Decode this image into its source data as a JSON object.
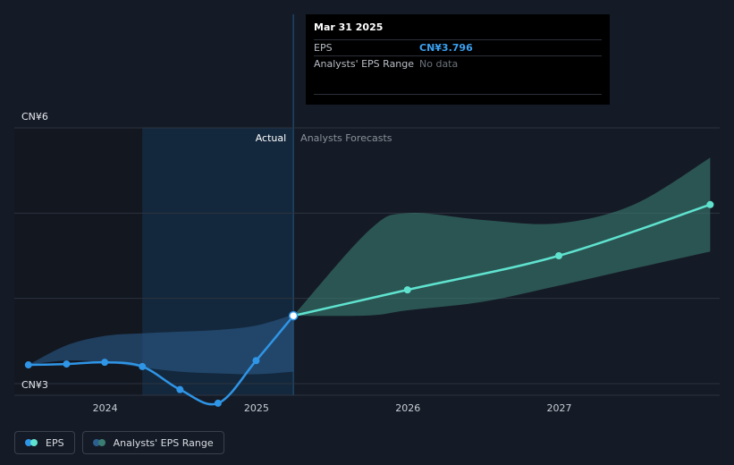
{
  "chart_data": {
    "type": "line",
    "y_axis": {
      "top_label": "CN¥6",
      "bottom_label": "CN¥3",
      "ylim": [
        3,
        6
      ],
      "grid": true
    },
    "x_axis": {
      "tick_labels": [
        "2024",
        "2025",
        "2026",
        "2027"
      ],
      "tick_years": [
        2024,
        2025,
        2026,
        2027
      ]
    },
    "section_labels": {
      "actual": "Actual",
      "forecast": "Analysts Forecasts"
    },
    "series": [
      {
        "name": "EPS",
        "kind": "actual",
        "color": "#2f95e6",
        "x": [
          "2023-06-30",
          "2023-09-30",
          "2023-12-31",
          "2024-03-31",
          "2024-06-30",
          "2024-09-30",
          "2024-12-31",
          "2025-03-31"
        ],
        "y": [
          3.22,
          3.23,
          3.25,
          3.2,
          2.93,
          2.77,
          3.27,
          3.796
        ]
      },
      {
        "name": "EPS",
        "kind": "forecast",
        "color": "#5fe3cf",
        "x": [
          "2025-03-31",
          "2025-12-31",
          "2026-12-31",
          "2027-12-31"
        ],
        "y": [
          3.796,
          4.1,
          4.5,
          5.1
        ]
      }
    ],
    "bands": [
      {
        "name": "Analysts' EPS Range",
        "kind": "actual",
        "color": "#2b5f8f",
        "x": [
          "2023-06-30",
          "2023-09-30",
          "2023-12-31",
          "2024-03-31",
          "2024-06-30",
          "2024-09-30",
          "2024-12-31",
          "2025-03-31"
        ],
        "high": [
          3.22,
          3.45,
          3.56,
          3.59,
          3.61,
          3.63,
          3.68,
          3.81
        ],
        "low": [
          3.22,
          3.27,
          3.25,
          3.19,
          3.14,
          3.12,
          3.11,
          3.14
        ]
      },
      {
        "name": "Analysts' EPS Range",
        "kind": "forecast",
        "color": "#3a7d72",
        "x": [
          "2025-03-31",
          "2025-09-30",
          "2025-12-31",
          "2026-06-30",
          "2026-12-31",
          "2027-06-30",
          "2027-12-31"
        ],
        "high": [
          3.796,
          4.8,
          5.0,
          4.92,
          4.88,
          5.1,
          5.65
        ],
        "low": [
          3.796,
          3.8,
          3.86,
          3.96,
          4.15,
          4.35,
          4.55
        ]
      }
    ],
    "highlight": {
      "x": "2025-03-31",
      "y": 3.796
    }
  },
  "tooltip": {
    "date": "Mar 31 2025",
    "eps_label": "EPS",
    "eps_value": "CN¥3.796",
    "range_label": "Analysts' EPS Range",
    "range_value": "No data"
  },
  "legend": {
    "eps_label": "EPS",
    "range_label": "Analysts' EPS Range",
    "eps_colors": [
      "#2f95e6",
      "#5fe3cf"
    ],
    "range_colors": [
      "#2b5f8f",
      "#3a7d72"
    ]
  }
}
